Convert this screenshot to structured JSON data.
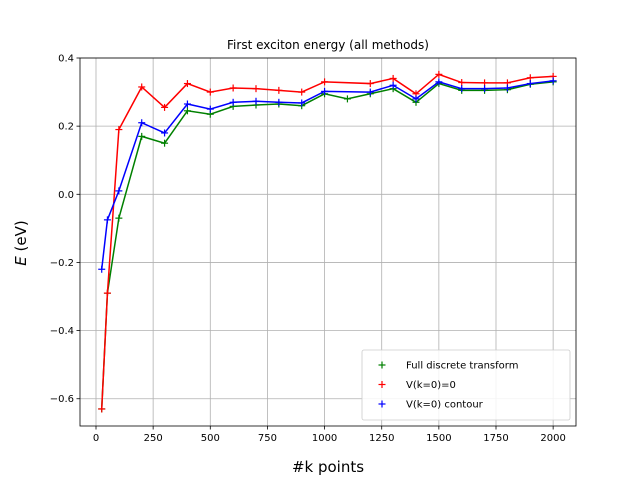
{
  "chart_data": {
    "type": "line",
    "title": "First exciton energy (all methods)",
    "xlabel": "#k points",
    "ylabel_italic": "E",
    "ylabel_unit": " (eV)",
    "xlim": [
      -70,
      2100
    ],
    "ylim": [
      -0.68,
      0.4
    ],
    "xticks": [
      0,
      250,
      500,
      750,
      1000,
      1250,
      1500,
      1750,
      2000
    ],
    "xtick_labels": [
      "0",
      "250",
      "500",
      "750",
      "1000",
      "1250",
      "1500",
      "1750",
      "2000"
    ],
    "yticks": [
      -0.6,
      -0.4,
      -0.2,
      0.0,
      0.2,
      0.4
    ],
    "ytick_labels": [
      "−0.6",
      "−0.4",
      "−0.2",
      "0.0",
      "0.2",
      "0.4"
    ],
    "grid": true,
    "legend_position": "lower-right",
    "series": [
      {
        "name": "Full discrete transform",
        "color": "#008000",
        "marker": "+",
        "points": [
          [
            25,
            -0.63
          ],
          [
            50,
            -0.29
          ],
          [
            100,
            -0.07
          ],
          [
            200,
            0.17
          ],
          [
            300,
            0.15
          ],
          [
            400,
            0.245
          ],
          [
            500,
            0.235
          ],
          [
            600,
            0.258
          ],
          [
            700,
            0.262
          ],
          [
            800,
            0.265
          ],
          [
            900,
            0.26
          ],
          [
            1000,
            0.295
          ],
          [
            1100,
            0.28
          ],
          [
            1200,
            0.295
          ],
          [
            1300,
            0.31
          ],
          [
            1400,
            0.27
          ],
          [
            1500,
            0.325
          ],
          [
            1600,
            0.305
          ],
          [
            1700,
            0.305
          ],
          [
            1800,
            0.307
          ],
          [
            1900,
            0.323
          ],
          [
            2000,
            0.33
          ]
        ]
      },
      {
        "name": "V(k=0)=0",
        "color": "#ff0000",
        "marker": "+",
        "points": [
          [
            25,
            -0.63
          ],
          [
            50,
            -0.29
          ],
          [
            100,
            0.19
          ],
          [
            200,
            0.315
          ],
          [
            300,
            0.255
          ],
          [
            400,
            0.325
          ],
          [
            500,
            0.3
          ],
          [
            600,
            0.312
          ],
          [
            700,
            0.31
          ],
          [
            800,
            0.305
          ],
          [
            900,
            0.3
          ],
          [
            1000,
            0.33
          ],
          [
            1200,
            0.325
          ],
          [
            1300,
            0.34
          ],
          [
            1400,
            0.295
          ],
          [
            1500,
            0.352
          ],
          [
            1600,
            0.328
          ],
          [
            1700,
            0.327
          ],
          [
            1800,
            0.327
          ],
          [
            1900,
            0.342
          ],
          [
            2000,
            0.346
          ]
        ]
      },
      {
        "name": "V(k=0) contour",
        "color": "#0000ff",
        "marker": "+",
        "points": [
          [
            25,
            -0.22
          ],
          [
            50,
            -0.075
          ],
          [
            100,
            0.01
          ],
          [
            200,
            0.21
          ],
          [
            300,
            0.18
          ],
          [
            400,
            0.265
          ],
          [
            500,
            0.25
          ],
          [
            600,
            0.27
          ],
          [
            700,
            0.273
          ],
          [
            800,
            0.27
          ],
          [
            900,
            0.268
          ],
          [
            1000,
            0.302
          ],
          [
            1200,
            0.3
          ],
          [
            1300,
            0.32
          ],
          [
            1400,
            0.28
          ],
          [
            1500,
            0.33
          ],
          [
            1600,
            0.31
          ],
          [
            1700,
            0.31
          ],
          [
            1800,
            0.312
          ],
          [
            1900,
            0.325
          ],
          [
            2000,
            0.333
          ]
        ]
      }
    ]
  }
}
